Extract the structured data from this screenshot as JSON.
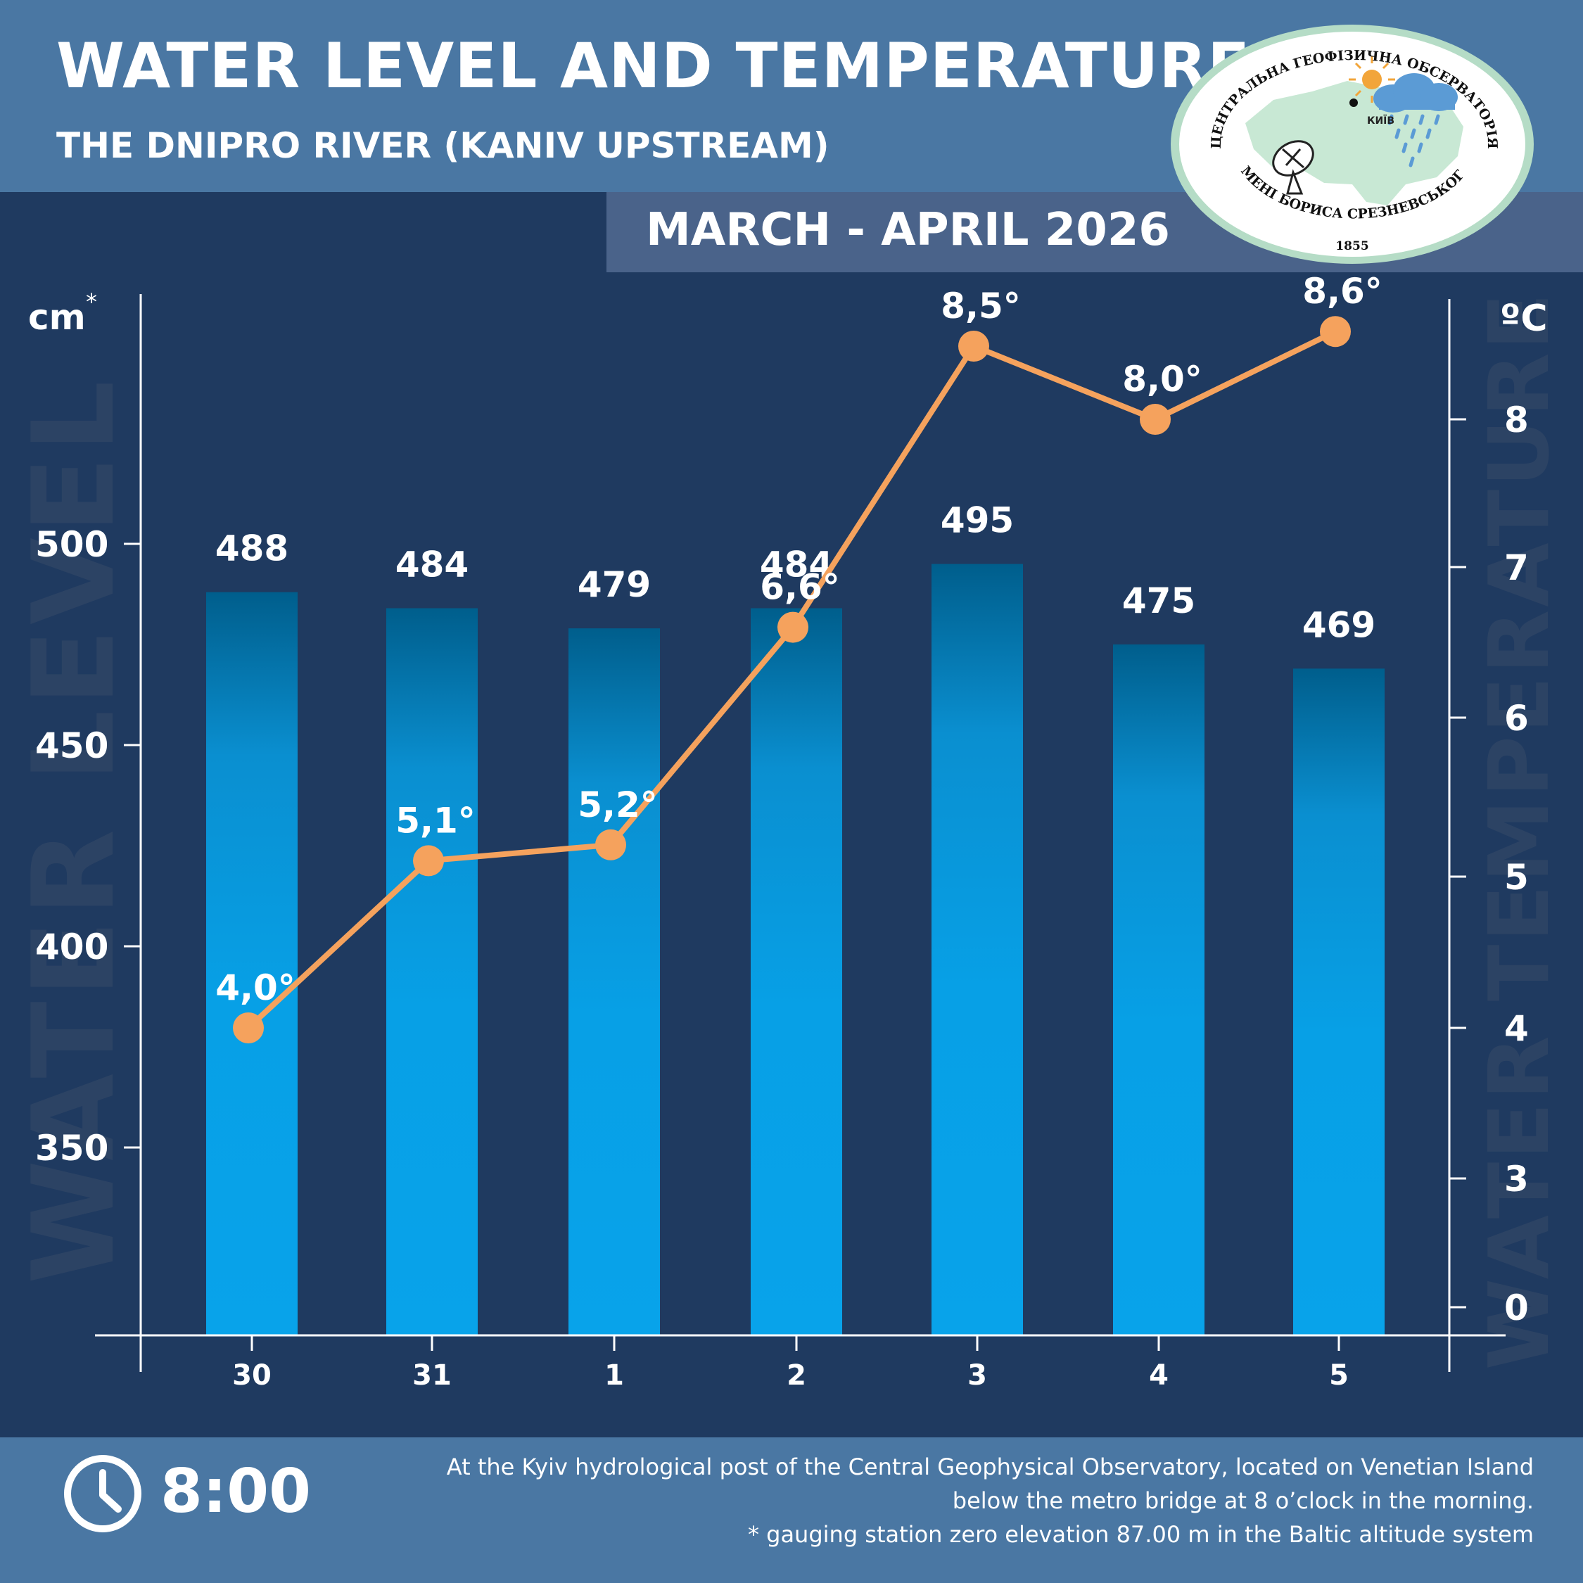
{
  "header": {
    "title": "WATER LEVEL AND TEMPERATURE",
    "subtitle": "THE DNIPRO RIVER (KANIV UPSTREAM)",
    "period": "MARCH - APRIL 2026"
  },
  "logo": {
    "top_text": "ЦЕНТРАЛЬНА ГЕОФІЗИЧНА ОБСЕРВАТОРІЯ",
    "bottom_text": "ІМЕНІ БОРИСА СРЕЗНЕВСЬКОГО",
    "year": "1855",
    "city": "КИЇВ"
  },
  "chart_data": {
    "type": "bar",
    "categories": [
      "30",
      "31",
      "1",
      "2",
      "3",
      "4",
      "5"
    ],
    "left_axis": {
      "unit": "cm",
      "unit_mark": "*",
      "ticks": [
        350,
        400,
        450,
        500
      ],
      "range": [
        300,
        560
      ],
      "watermark": "WATER LEVEL"
    },
    "right_axis": {
      "unit": "ºC",
      "ticks": [
        0,
        3,
        4,
        5,
        6,
        7,
        8
      ],
      "tick_values": [
        2.2,
        3,
        4,
        5,
        6,
        7,
        8
      ],
      "watermark": "WATER TEMPERATURE"
    },
    "series": [
      {
        "kind": "bar",
        "values": [
          488,
          484,
          479,
          484,
          495,
          475,
          469
        ],
        "labels": [
          "488",
          "484",
          "479",
          "484",
          "495",
          "475",
          "469"
        ]
      },
      {
        "kind": "line",
        "values": [
          4.0,
          5.1,
          5.2,
          6.6,
          8.5,
          8.0,
          8.6
        ],
        "labels": [
          "4,0°",
          "5,1°",
          "5,2°",
          "6,6°",
          "8,5°",
          "8,0°",
          "8,6°"
        ]
      }
    ],
    "colors": {
      "bar_top": "#005e8c",
      "bar_mid": "#0a8fd0",
      "bar_bottom": "#08a3ea",
      "line": "#f5a25d",
      "watermark": "#2c4364"
    }
  },
  "footer": {
    "time": "8:00",
    "note_lines": [
      "At the Kyiv hydrological post of the Central Geophysical Observatory, located on Venetian Island",
      "below the metro bridge  at 8 o’clock in the morning.",
      "* gauging station zero elevation 87.00 m in the Baltic altitude system"
    ]
  }
}
